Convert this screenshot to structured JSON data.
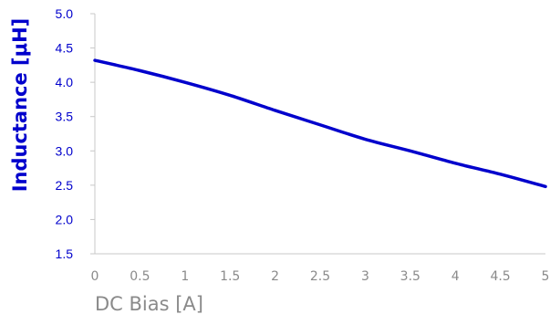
{
  "chart_data": {
    "type": "line",
    "xlabel": "DC Bias [A]",
    "ylabel": "Inductance [μH]",
    "xlim": [
      0,
      5
    ],
    "ylim": [
      1.5,
      5.0
    ],
    "x_ticks": [
      "0",
      "0.5",
      "1",
      "1.5",
      "2",
      "2.5",
      "3",
      "3.5",
      "4",
      "4.5",
      "5"
    ],
    "y_ticks": [
      "1.5",
      "2.0",
      "2.5",
      "3.0",
      "3.5",
      "4.0",
      "4.5",
      "5.0"
    ],
    "grid": false,
    "series": [
      {
        "color": "#0000cc",
        "x": [
          0,
          0.5,
          1,
          1.5,
          2,
          2.5,
          3,
          3.5,
          4,
          4.5,
          5
        ],
        "y": [
          4.32,
          4.17,
          4.0,
          3.81,
          3.59,
          3.38,
          3.17,
          3.0,
          2.82,
          2.66,
          2.48
        ]
      }
    ]
  }
}
